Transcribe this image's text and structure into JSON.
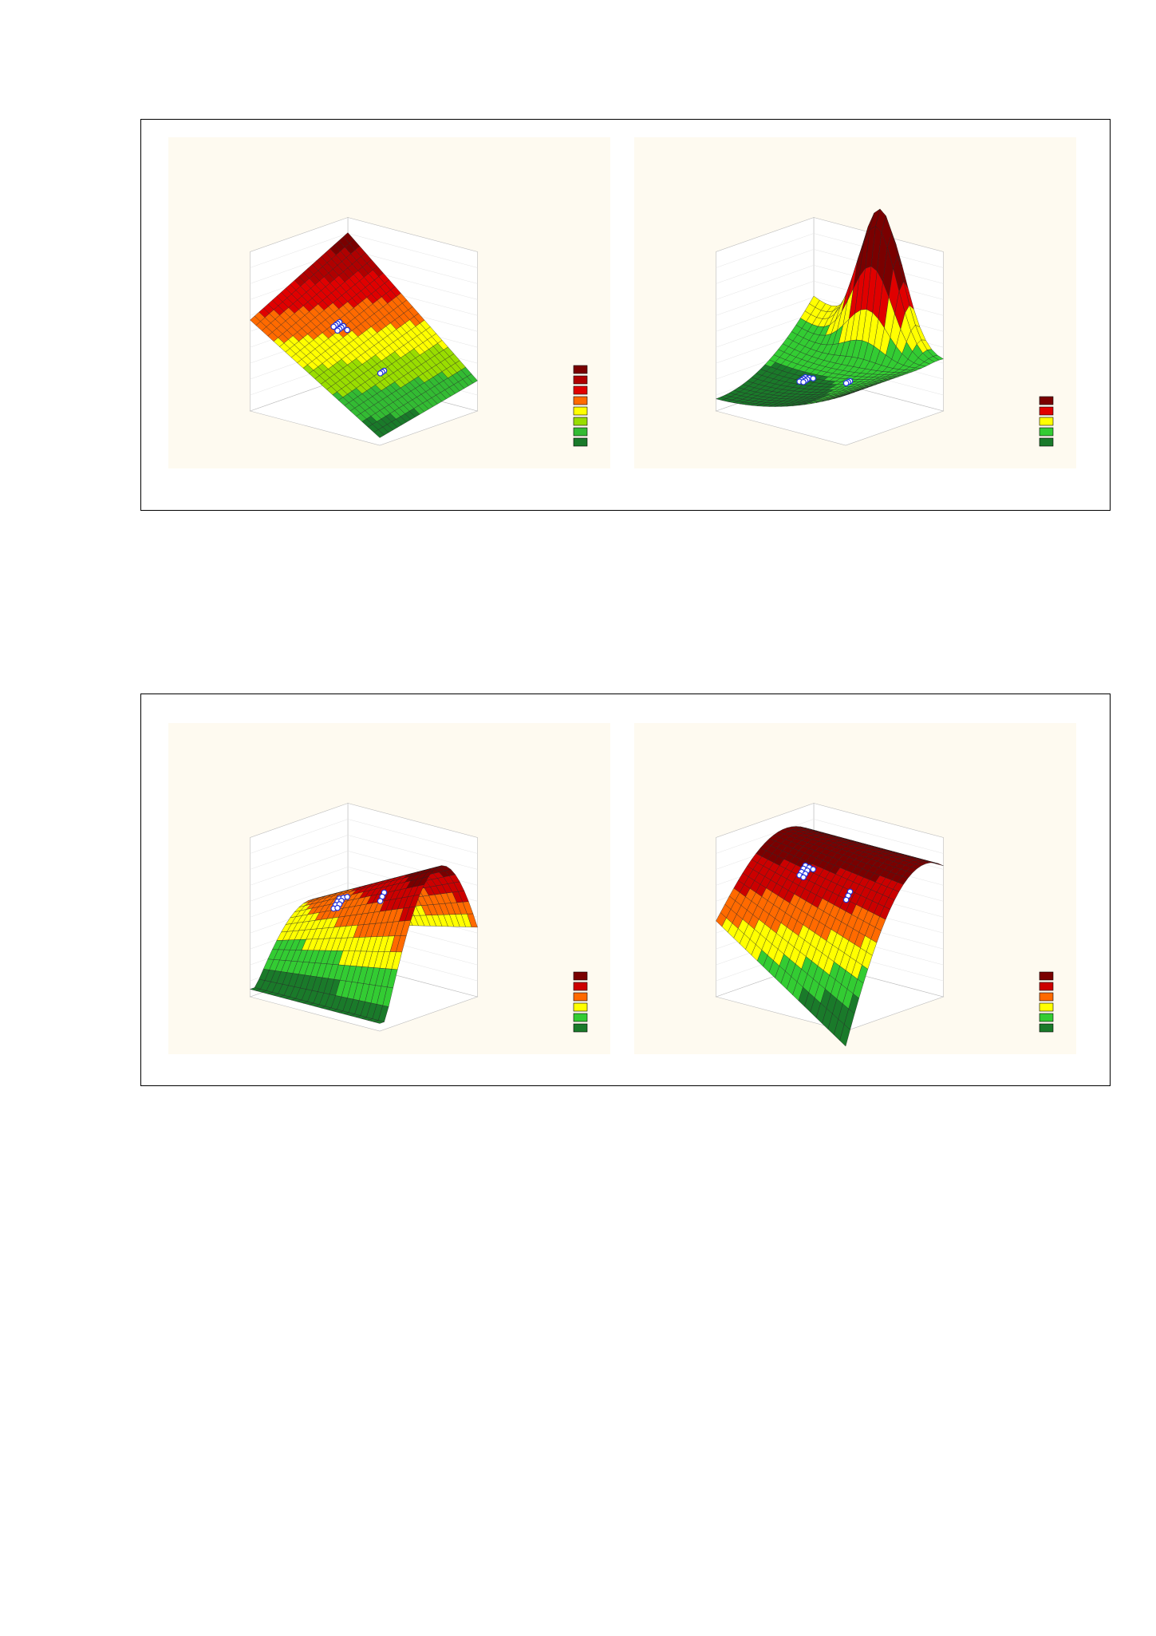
{
  "figures": [
    {
      "panels": [
        {
          "legend_colors": [
            "#7a0000",
            "#b00000",
            "#e00000",
            "#ff6a00",
            "#ffff00",
            "#99dd00",
            "#33bb33",
            "#1a7a2a"
          ]
        },
        {
          "legend_colors": [
            "#7a0000",
            "#e00000",
            "#ffff00",
            "#33cc33",
            "#1a7a2a"
          ]
        }
      ]
    },
    {
      "panels": [
        {
          "legend_colors": [
            "#7a0000",
            "#cc0000",
            "#ff6a00",
            "#ffff00",
            "#33cc33",
            "#1a7a2a"
          ]
        },
        {
          "legend_colors": [
            "#7a0000",
            "#cc0000",
            "#ff6a00",
            "#ffff00",
            "#33cc33",
            "#1a7a2a"
          ]
        }
      ]
    }
  ]
}
